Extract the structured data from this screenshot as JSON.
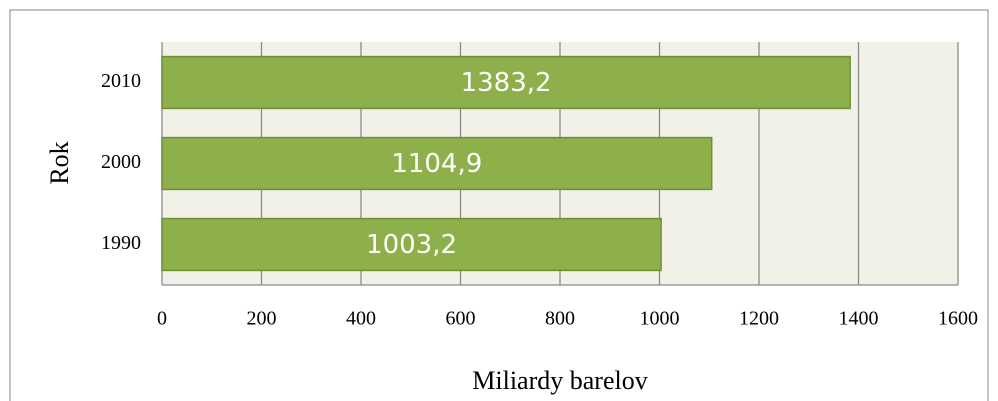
{
  "chart_data": {
    "type": "bar",
    "orientation": "horizontal",
    "ylabel": "Rok",
    "xlabel": "Miliardy barelov",
    "categories": [
      "1990",
      "2000",
      "2010"
    ],
    "values": [
      1003.2,
      1104.9,
      1383.2
    ],
    "value_labels": [
      "1003,2",
      "1104,9",
      "1383,2"
    ],
    "color": "#8db04a",
    "xlim": [
      0,
      1600
    ],
    "xticks": [
      0,
      200,
      400,
      600,
      800,
      1000,
      1200,
      1400,
      1600
    ],
    "grid": true
  }
}
